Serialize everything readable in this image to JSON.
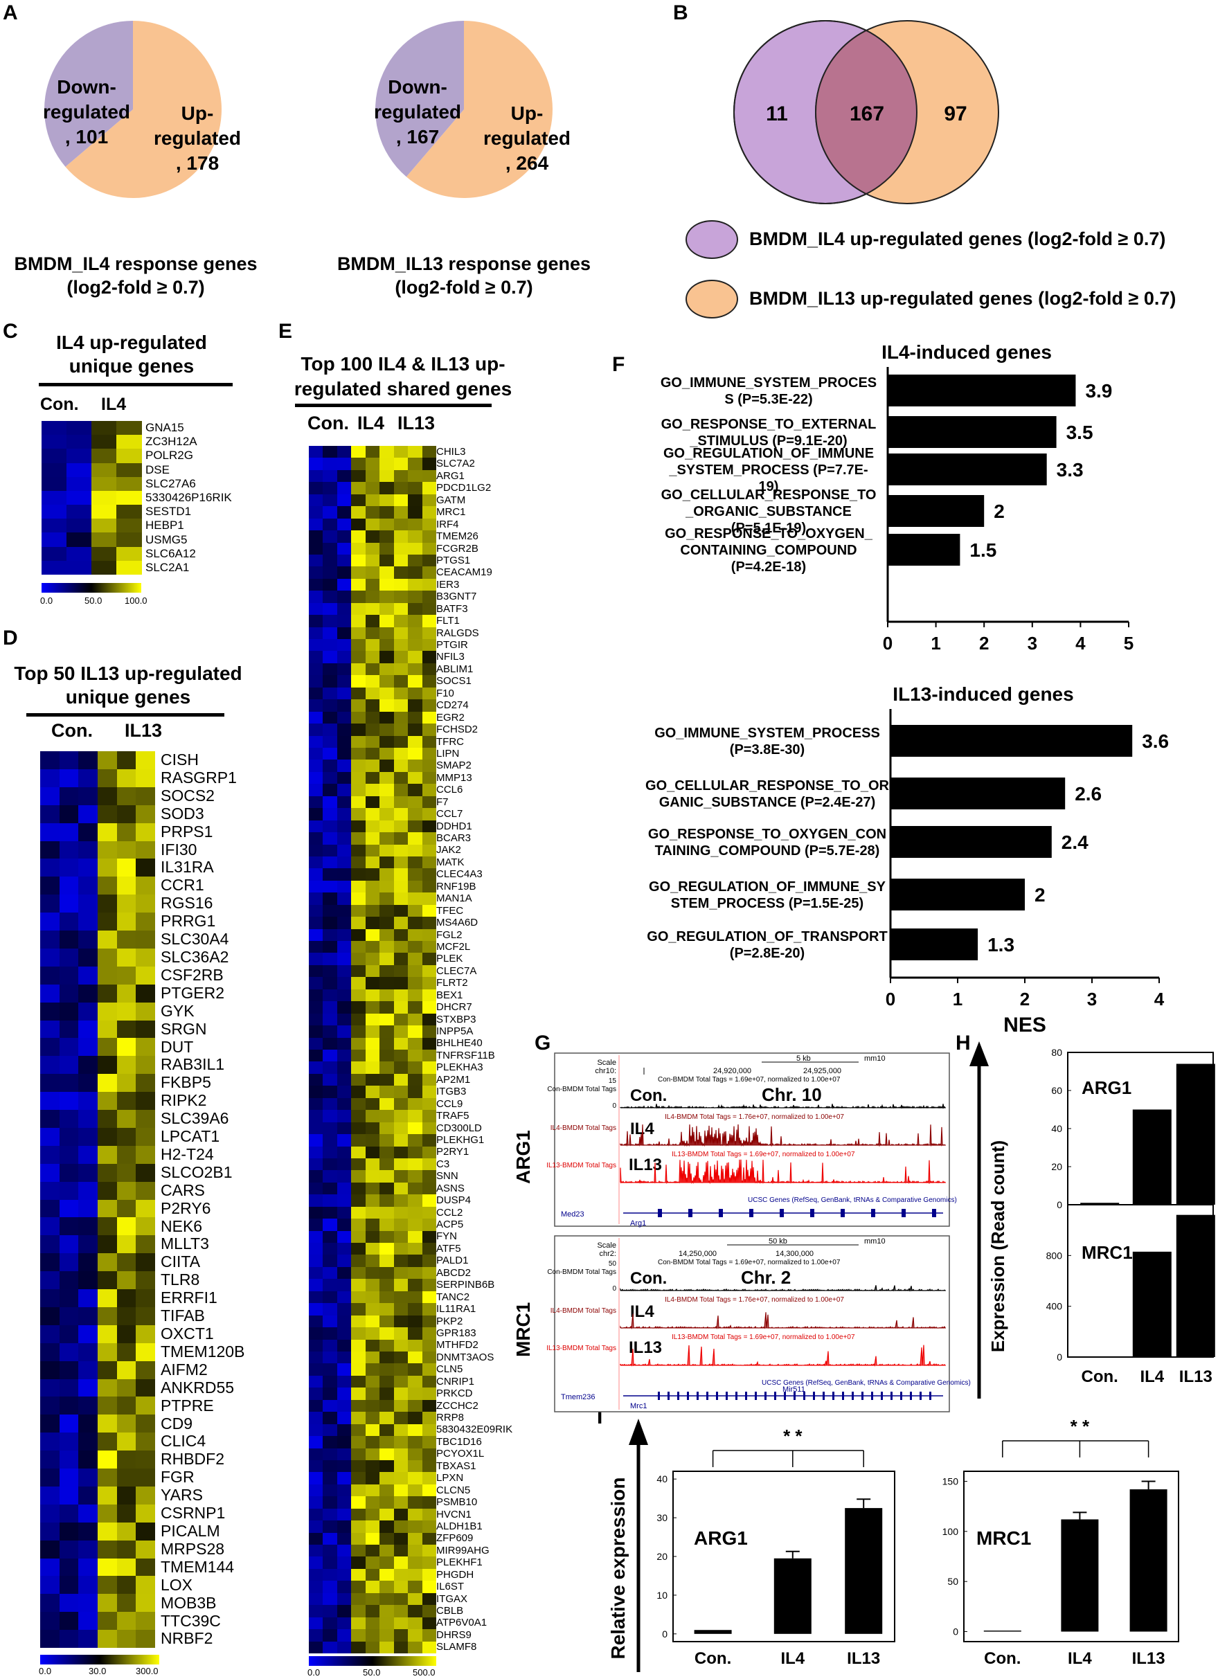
{
  "panel_letters": {
    "A": "A",
    "B": "B",
    "C": "C",
    "D": "D",
    "E": "E",
    "F": "F",
    "G": "G",
    "H": "H",
    "I": "I"
  },
  "colors": {
    "down": "#b3a4cc",
    "up": "#f9c391",
    "venn_left": "#c8a4d9",
    "venn_right": "#f9c391",
    "venn_overlap": "#b8738f",
    "bar": "#000000",
    "scale_low": "#0000ff",
    "scale_mid": "#000000",
    "scale_high": "#ffff00"
  },
  "chart_data": [
    {
      "type": "pie",
      "id": "A1",
      "labels": [
        "Down-regulated",
        "Up-regulated"
      ],
      "values": [
        101,
        178
      ],
      "text": {
        "down": [
          "Down-",
          "regulated",
          ", 101"
        ],
        "up": [
          "Up-",
          "regulated",
          ", 178"
        ]
      },
      "caption": [
        "BMDM_IL4 response genes",
        "(log2-fold ≥ 0.7)"
      ]
    },
    {
      "type": "pie",
      "id": "A2",
      "labels": [
        "Down-regulated",
        "Up-regulated"
      ],
      "values": [
        167,
        264
      ],
      "text": {
        "down": [
          "Down-",
          "regulated",
          ", 167"
        ],
        "up": [
          "Up-",
          "regulated",
          ", 264"
        ]
      },
      "caption": [
        "BMDM_IL13 response genes",
        "(log2-fold ≥ 0.7)"
      ]
    },
    {
      "type": "venn",
      "id": "B",
      "values": {
        "left_only": "11",
        "shared": "167",
        "right_only": "97"
      },
      "legend": [
        "BMDM_IL4 up-regulated genes (log2-fold ≥ 0.7)",
        "BMDM_IL13 up-regulated genes (log2-fold ≥ 0.7)"
      ]
    },
    {
      "type": "bar",
      "id": "F1",
      "orientation": "horizontal",
      "title": "IL4-induced genes",
      "categories": [
        [
          "GO_IMMUNE_SYSTEM_PROCES",
          "S (P=5.3E-22)"
        ],
        [
          "GO_RESPONSE_TO_EXTERNAL",
          "_STIMULUS (P=9.1E-20)"
        ],
        [
          "GO_REGULATION_OF_IMMUNE",
          "_SYSTEM_PROCESS (P=7.7E-",
          "19)"
        ],
        [
          "GO_CELLULAR_RESPONSE_TO",
          "_ORGANIC_SUBSTANCE",
          "(P=5.1E-19)"
        ],
        [
          "GO_RESPONSE_TO_OXYGEN_",
          "CONTAINING_COMPOUND",
          "(P=4.2E-18)"
        ]
      ],
      "values": [
        3.9,
        3.5,
        3.3,
        2,
        1.5
      ],
      "value_labels": [
        "3.9",
        "3.5",
        "3.3",
        "2",
        "1.5"
      ],
      "xlim": [
        0,
        5
      ],
      "xticks": [
        "0",
        "1",
        "2",
        "3",
        "4",
        "5"
      ]
    },
    {
      "type": "bar",
      "id": "F2",
      "orientation": "horizontal",
      "title": "IL13-induced genes",
      "categories": [
        [
          "GO_IMMUNE_SYSTEM_PROCESS",
          "(P=3.8E-30)"
        ],
        [
          "GO_CELLULAR_RESPONSE_TO_OR",
          "GANIC_SUBSTANCE (P=2.4E-27)"
        ],
        [
          "GO_RESPONSE_TO_OXYGEN_CON",
          "TAINING_COMPOUND (P=5.7E-28)"
        ],
        [
          "GO_REGULATION_OF_IMMUNE_SY",
          "STEM_PROCESS (P=1.5E-25)"
        ],
        [
          "GO_REGULATION_OF_TRANSPORT",
          "(P=2.8E-20)"
        ]
      ],
      "values": [
        3.6,
        2.6,
        2.4,
        2,
        1.3
      ],
      "value_labels": [
        "3.6",
        "2.6",
        "2.4",
        "2",
        "1.3"
      ],
      "xlim": [
        0,
        4
      ],
      "xticks": [
        "0",
        "1",
        "2",
        "3",
        "4"
      ],
      "xlabel": "NES"
    },
    {
      "type": "bar",
      "id": "H1",
      "title": "ARG1",
      "categories": [
        "Con.",
        "IL4",
        "IL13"
      ],
      "values": [
        1,
        50,
        74
      ],
      "ylim": [
        0,
        80
      ],
      "yticks": [
        "0",
        "20",
        "40",
        "60",
        "80"
      ]
    },
    {
      "type": "bar",
      "id": "H2",
      "title": "MRC1",
      "categories": [
        "Con.",
        "IL4",
        "IL13"
      ],
      "values": [
        2,
        830,
        1120
      ],
      "ylim": [
        0,
        1200
      ],
      "yticks": [
        "0",
        "400",
        "800"
      ],
      "ylabel": "Expression (Read count)"
    },
    {
      "type": "bar",
      "id": "I1",
      "title": "ARG1",
      "categories": [
        "Con.",
        "IL4",
        "IL13"
      ],
      "values": [
        1,
        19.5,
        32.5
      ],
      "errors": [
        0,
        1.8,
        2.3
      ],
      "ylim": [
        -2,
        42
      ],
      "yticks": [
        "0",
        "10",
        "20",
        "30",
        "40"
      ],
      "ylabel": "Relative expression",
      "significance": "* *"
    },
    {
      "type": "bar",
      "id": "I2",
      "title": "MRC1",
      "categories": [
        "Con.",
        "IL4",
        "IL13"
      ],
      "values": [
        1,
        112,
        142
      ],
      "errors": [
        0,
        7,
        8
      ],
      "ylim": [
        -10,
        160
      ],
      "yticks": [
        "0",
        "50",
        "100",
        "150"
      ],
      "significance": "* *"
    }
  ],
  "heatmaps": {
    "C": {
      "title": [
        "IL4 up-regulated",
        "unique genes"
      ],
      "cols": [
        "Con.",
        "IL4"
      ],
      "genes": [
        "GNA15",
        "ZC3H12A",
        "POLR2G",
        "DSE",
        "SLC27A6",
        "5330426P16RIK",
        "SESTD1",
        "HEBP1",
        "USMG5",
        "SLC6A12",
        "SLC2A1"
      ],
      "scale": [
        "0.0",
        "50.0",
        "100.0"
      ]
    },
    "D": {
      "title": [
        "Top 50 IL13 up-regulated",
        "unique genes"
      ],
      "cols": [
        "Con.",
        "IL13"
      ],
      "genes": [
        "CISH",
        "RASGRP1",
        "SOCS2",
        "SOD3",
        "PRPS1",
        "IFI30",
        "IL31RA",
        "CCR1",
        "RGS16",
        "PRRG1",
        "SLC30A4",
        "SLC36A2",
        "CSF2RB",
        "PTGER2",
        "GYK",
        "SRGN",
        "DUT",
        "RAB3IL1",
        "FKBP5",
        "RIPK2",
        "SLC39A6",
        "LPCAT1",
        "H2-T24",
        "SLCO2B1",
        "CARS",
        "P2RY6",
        "NEK6",
        "MLLT3",
        "CIITA",
        "TLR8",
        "ERRFI1",
        "TIFAB",
        "OXCT1",
        "TMEM120B",
        "AIFM2",
        "ANKRD55",
        "PTPRE",
        "CD9",
        "CLIC4",
        "RHBDF2",
        "FGR",
        "YARS",
        "CSRNP1",
        "PICALM",
        "MRPS28",
        "TMEM144",
        "LOX",
        "MOB3B",
        "TTC39C",
        "NRBF2"
      ],
      "scale": [
        "0.0",
        "30.0",
        "300.0"
      ]
    },
    "E": {
      "title": [
        "Top 100 IL4 & IL13 up-",
        "regulated shared genes"
      ],
      "cols": [
        "Con.",
        "IL4",
        "IL13"
      ],
      "genes": [
        "CHIL3",
        "SLC7A2",
        "ARG1",
        "PDCD1LG2",
        "GATM",
        "MRC1",
        "IRF4",
        "TMEM26",
        "FCGR2B",
        "PTGS1",
        "CEACAM19",
        "IER3",
        "B3GNT7",
        "BATF3",
        "FLT1",
        "RALGDS",
        "PTGIR",
        "NFIL3",
        "ABLIM1",
        "SOCS1",
        "F10",
        "CD274",
        "EGR2",
        "FCHSD2",
        "TFRC",
        "LIPN",
        "SMAP2",
        "MMP13",
        "CCL6",
        "F7",
        "CCL7",
        "DDHD1",
        "BCAR3",
        "JAK2",
        "MATK",
        "CLEC4A3",
        "RNF19B",
        "MAN1A",
        "TFEC",
        "MS4A6D",
        "FGL2",
        "MCF2L",
        "PLEK",
        "CLEC7A",
        "FLRT2",
        "BEX1",
        "DHCR7",
        "STXBP3",
        "INPP5A",
        "BHLHE40",
        "TNFRSF11B",
        "PLEKHA3",
        "AP2M1",
        "ITGB3",
        "CCL9",
        "TRAF5",
        "CD300LD",
        "PLEKHG1",
        "P2RY1",
        "C3",
        "SNN",
        "ASNS",
        "DUSP4",
        "CCL2",
        "ACP5",
        "FYN",
        "ATF5",
        "PALD1",
        "ABCD2",
        "SERPINB6B",
        "TANC2",
        "IL11RA1",
        "PKP2",
        "GPR183",
        "MTHFD2",
        "DNMT3AOS",
        "CLN5",
        "CNRIP1",
        "PRKCD",
        "ZCCHC2",
        "RRP8",
        "5830432E09RIK",
        "TBC1D16",
        "PCYOX1L",
        "TBXAS1",
        "LPXN",
        "CLCN5",
        "PSMB10",
        "HVCN1",
        "ALDH1B1",
        "ZFP609",
        "MIR99AHG",
        "PLEKHF1",
        "PHGDH",
        "IL6ST",
        "ITGAX",
        "CBLB",
        "ATP6V0A1",
        "DHRS9",
        "SLAMF8"
      ],
      "scale": [
        "0.0",
        "50.0",
        "500.0"
      ]
    }
  },
  "genome_browser": {
    "row_labels": [
      "ARG1",
      "MRC1"
    ],
    "arg1": {
      "scale": "Scale",
      "chr": "chr10:",
      "scale_kb": "5 kb",
      "assembly": "mm10",
      "pos1": "24,920,000",
      "pos2": "24,925,000",
      "norm_con": "Con-BMDM Total Tags = 1.69e+07, normalized to 1.00e+07",
      "norm_il4": "IL4-BMDM Total Tags = 1.76e+07, normalized to 1.00e+07",
      "norm_il13": "IL13-BMDM Total Tags = 1.69e+07, normalized to 1.00e+07",
      "track_con": "Con-BMDM Total Tags",
      "track_il4": "IL4-BMDM Total Tags",
      "track_il13": "IL13-BMDM Total Tags",
      "label_con": "Con.",
      "label_il4": "IL4",
      "label_il13": "IL13",
      "chr_label": "Chr. 10",
      "ucsc": "UCSC Genes (RefSeq, GenBank, tRNAs & Comparative Genomics)",
      "gene_left": "Med23",
      "gene_main": "Arg1",
      "y15": "15",
      "y0": "0"
    },
    "mrc1": {
      "scale": "Scale",
      "chr": "chr2:",
      "scale_kb": "50 kb",
      "assembly": "mm10",
      "pos1": "14,250,000",
      "pos2": "14,300,000",
      "norm_con": "Con-BMDM Total Tags = 1.69e+07, normalized to 1.00e+07",
      "norm_il4": "IL4-BMDM Total Tags = 1.76e+07, normalized to 1.00e+07",
      "norm_il13": "IL13-BMDM Total Tags = 1.69e+07, normalized to 1.00e+07",
      "track_con": "Con-BMDM Total Tags",
      "track_il4": "IL4-BMDM Total Tags",
      "track_il13": "IL13-BMDM Total Tags",
      "label_con": "Con.",
      "label_il4": "IL4",
      "label_il13": "IL13",
      "chr_label": "Chr. 2",
      "ucsc": "UCSC Genes (RefSeq, GenBank, tRNAs & Comparative Genomics)",
      "gene_left": "Tmem236",
      "gene_mid": "Mir511",
      "gene_main": "Mrc1",
      "y50": "50",
      "y0": "0"
    }
  }
}
